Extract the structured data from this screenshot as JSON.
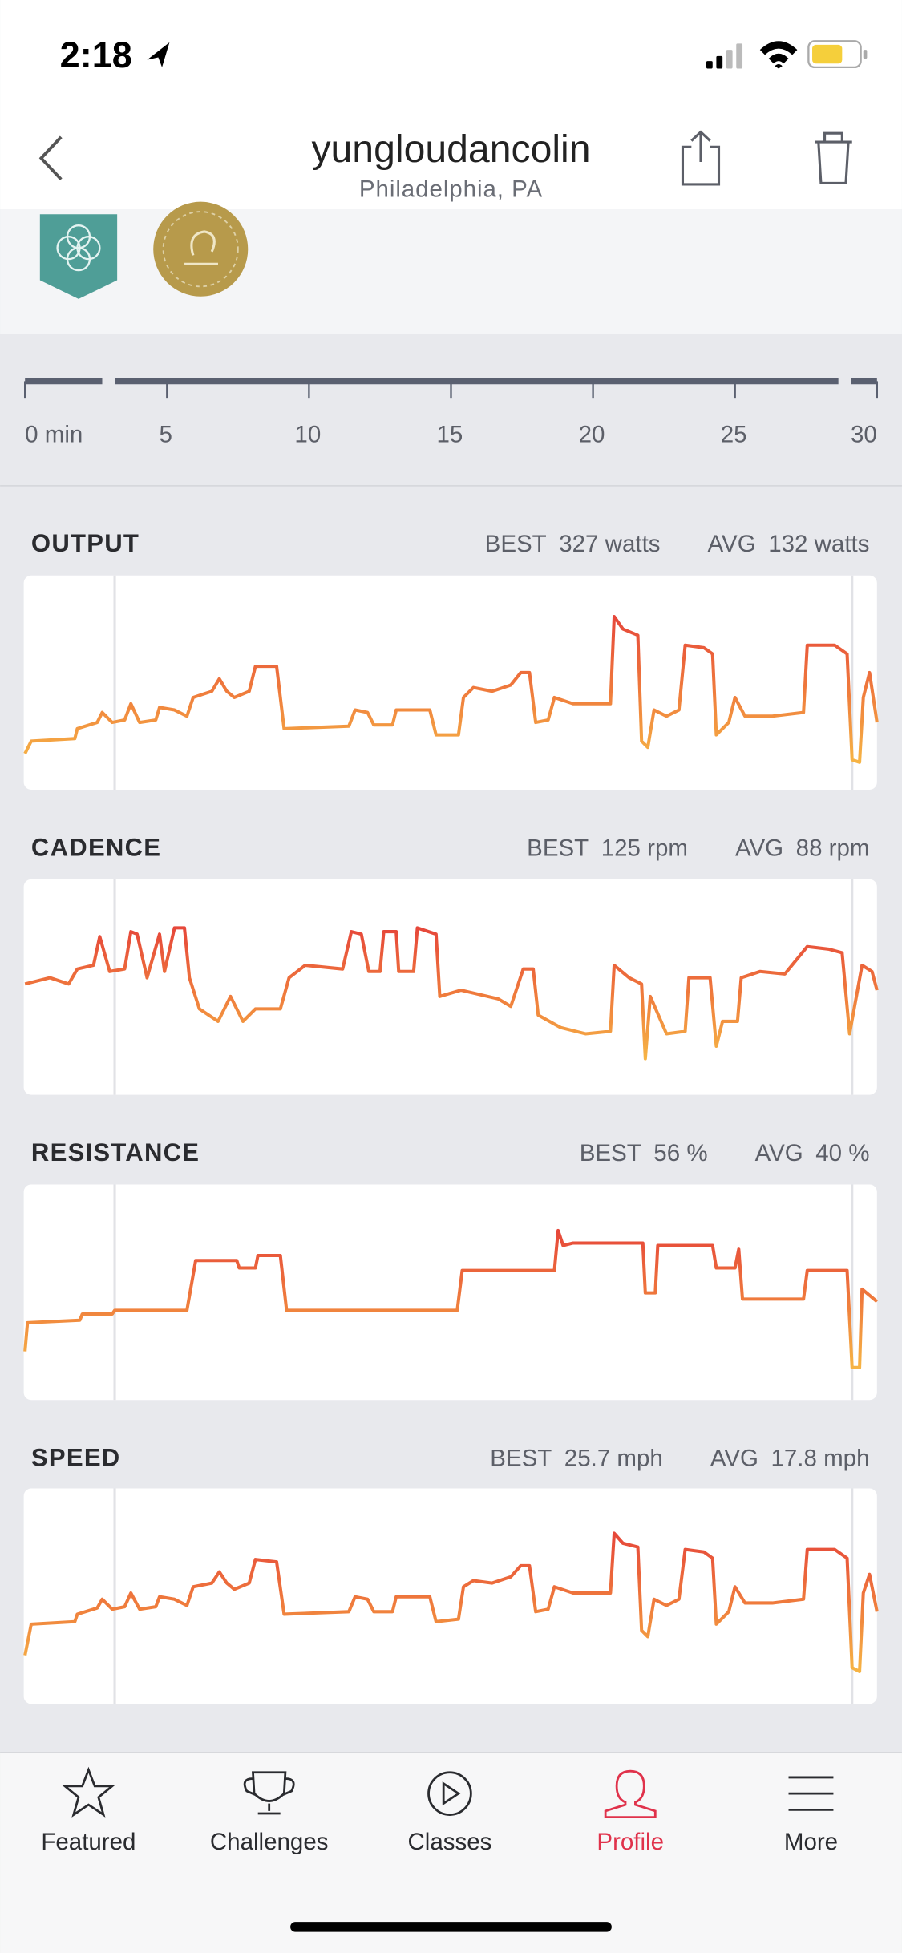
{
  "status_bar": {
    "time": "2:18"
  },
  "header": {
    "title": "yungloudancolin",
    "subtitle": "Philadelphia, PA"
  },
  "timeline": {
    "labels": [
      "0 min",
      "5",
      "10",
      "15",
      "20",
      "25",
      "30"
    ]
  },
  "metrics": [
    {
      "name": "OUTPUT",
      "best_label": "BEST",
      "best": "327 watts",
      "avg_label": "AVG",
      "avg": "132 watts"
    },
    {
      "name": "CADENCE",
      "best_label": "BEST",
      "best": "125 rpm",
      "avg_label": "AVG",
      "avg": "88 rpm"
    },
    {
      "name": "RESISTANCE",
      "best_label": "BEST",
      "best": "56 %",
      "avg_label": "AVG",
      "avg": "40 %"
    },
    {
      "name": "SPEED",
      "best_label": "BEST",
      "best": "25.7 mph",
      "avg_label": "AVG",
      "avg": "17.8 mph"
    }
  ],
  "tabs": [
    {
      "label": "Featured",
      "active": false
    },
    {
      "label": "Challenges",
      "active": false
    },
    {
      "label": "Classes",
      "active": false
    },
    {
      "label": "Profile",
      "active": true
    },
    {
      "label": "More",
      "active": false
    }
  ]
}
